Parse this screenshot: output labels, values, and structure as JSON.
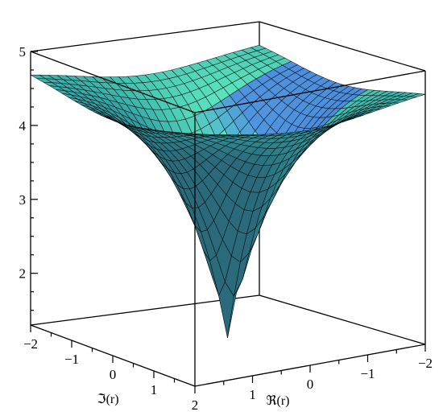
{
  "chart_data": {
    "type": "surface3d",
    "title": "",
    "xlabel": "ℜ(r)",
    "ylabel": "ℑ(r)",
    "zlabel": "",
    "x_range": [
      -2,
      2
    ],
    "y_range": [
      -2,
      2
    ],
    "z_range": [
      1.3,
      5.0
    ],
    "x_ticks": [
      {
        "value": 1,
        "label": "1"
      },
      {
        "value": 0,
        "label": "0"
      },
      {
        "value": -1,
        "label": "−1"
      },
      {
        "value": -2,
        "label": "−2"
      }
    ],
    "y_ticks": [
      {
        "value": -2,
        "label": "−2"
      },
      {
        "value": -1,
        "label": "−1"
      },
      {
        "value": 0,
        "label": "0"
      },
      {
        "value": 1,
        "label": "1"
      },
      {
        "value": 2,
        "label": "2"
      }
    ],
    "z_ticks": [
      {
        "value": 5,
        "label": "5"
      },
      {
        "value": 4,
        "label": "4"
      },
      {
        "value": 3,
        "label": "3"
      },
      {
        "value": 2,
        "label": "2"
      }
    ],
    "surface": {
      "description_formula": "z = 4.8 - 3.5*exp(-1.2*sqrt(x^2+y^2))",
      "minimum": {
        "x": 0,
        "y": 0,
        "z": 1.3
      },
      "corner_value": 4.8,
      "grid_lines": 26
    },
    "colors": {
      "surface_light": "#5fe9c0",
      "surface_mid": "#34a3a5",
      "surface_dark": "#2a6a7a",
      "surface_blue": "#4a78e8",
      "mesh": "#000000",
      "box": "#000000"
    }
  }
}
